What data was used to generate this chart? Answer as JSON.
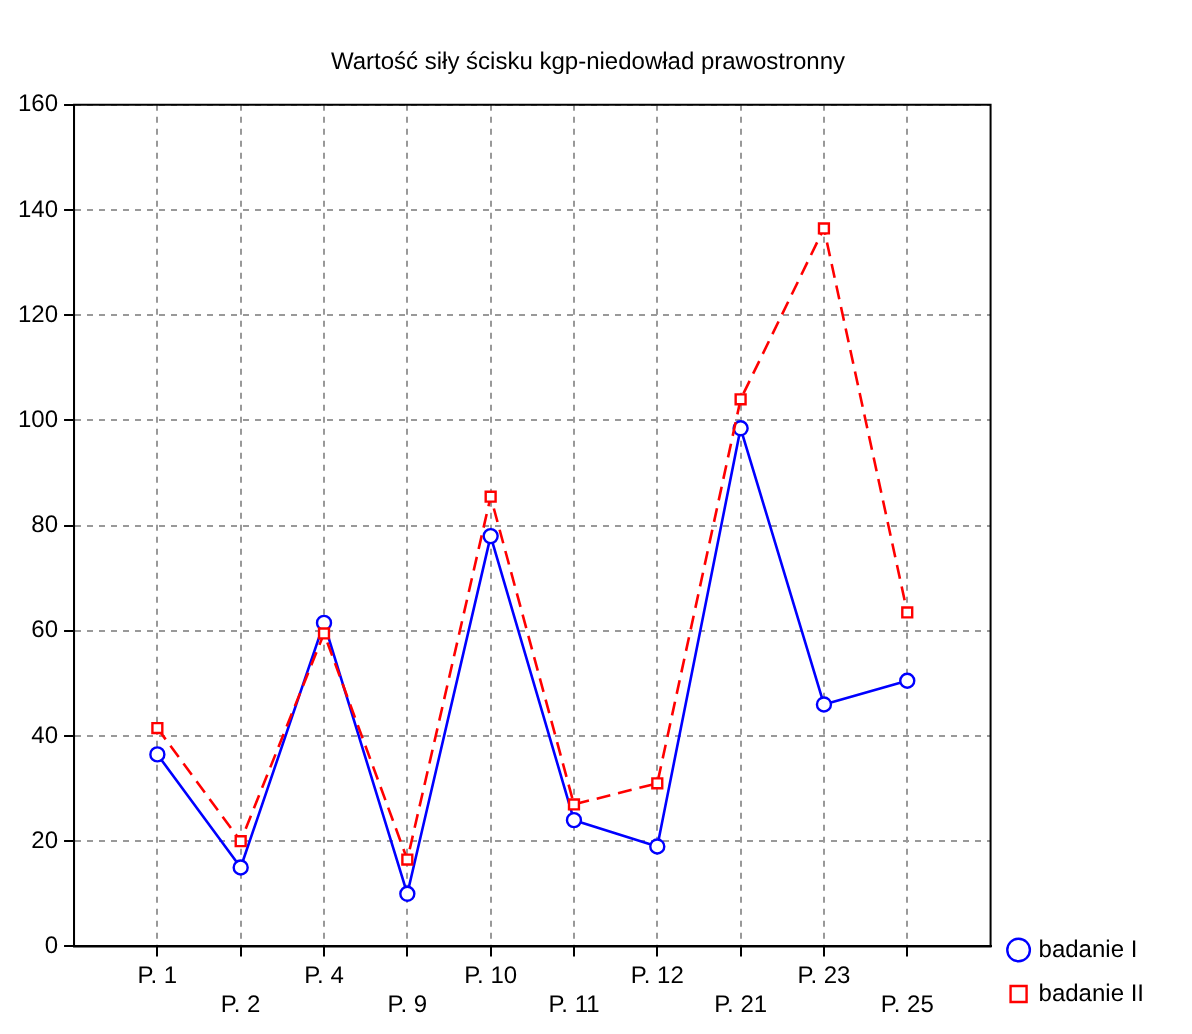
{
  "chart_data": {
    "type": "line",
    "title": "Wartość siły ścisku kgp-niedowład prawostronny",
    "categories": [
      "P. 1",
      "P. 2",
      "P. 4",
      "P. 9",
      "P. 10",
      "P. 11",
      "P. 12",
      "P. 21",
      "P. 23",
      "P. 25"
    ],
    "series": [
      {
        "name": "badanie I",
        "color": "#0000ff",
        "marker": "circle",
        "line_style": "solid",
        "values": [
          36.5,
          15,
          61.5,
          10,
          78,
          24,
          19,
          98.5,
          46,
          50.5
        ]
      },
      {
        "name": "badanie II",
        "color": "#ff0000",
        "marker": "square",
        "line_style": "dashed",
        "values": [
          41.5,
          20,
          59.5,
          16.5,
          85.5,
          27,
          31,
          104,
          136.5,
          63.5
        ]
      }
    ],
    "ylim": [
      0,
      160
    ],
    "yticks": [
      0,
      20,
      40,
      60,
      80,
      100,
      120,
      140,
      160
    ],
    "grid": true,
    "legend": "bottom right"
  }
}
